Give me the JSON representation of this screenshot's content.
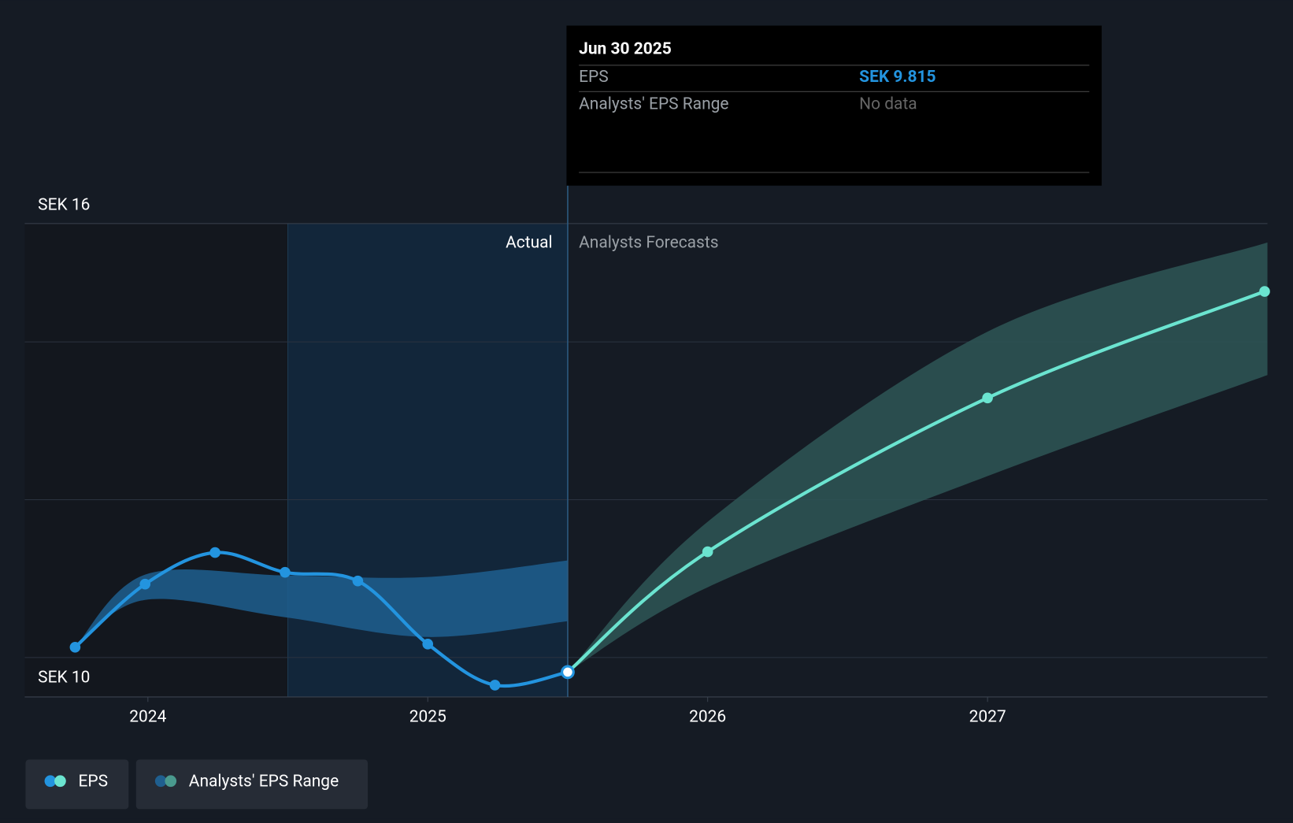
{
  "chart_data": {
    "type": "line",
    "y_axis_top_label": "SEK 16",
    "y_axis_bottom_label": "SEK 10",
    "region_labels": [
      "Actual",
      "Analysts Forecasts"
    ],
    "xlim": [
      2023.56,
      2028.0
    ],
    "xticks": [
      2024,
      2025,
      2026,
      2027
    ],
    "ylim": [
      9.5,
      15.5
    ],
    "yticks": [
      10,
      12,
      14
    ],
    "grid": true,
    "series": [
      {
        "name": "EPS",
        "color": "#2394df",
        "forecast_color": "#6be4d0",
        "x": [
          2023.74,
          2023.99,
          2024.24,
          2024.49,
          2024.75,
          2025.0,
          2025.24,
          2025.5
        ],
        "values": [
          10.13,
          10.93,
          11.33,
          11.08,
          10.97,
          10.17,
          9.65,
          9.815
        ],
        "forecast_x": [
          2025.5,
          2026.0,
          2027.0,
          2027.99
        ],
        "forecast_values": [
          9.815,
          11.34,
          13.29,
          14.64
        ]
      },
      {
        "name": "Analysts' EPS Range",
        "color": "#1f5f8f",
        "forecast_color": "#2e5656",
        "x": [
          2023.74,
          2023.99,
          2024.49,
          2025.0,
          2025.5
        ],
        "upper": [
          10.13,
          11.05,
          11.04,
          11.02,
          11.23
        ],
        "lower": [
          10.13,
          10.73,
          10.51,
          10.26,
          10.46
        ],
        "forecast_x": [
          2025.5,
          2026.0,
          2027.0,
          2028.0
        ],
        "forecast_upper": [
          9.815,
          11.72,
          14.13,
          15.26
        ],
        "forecast_lower": [
          9.815,
          10.89,
          12.3,
          13.58
        ]
      }
    ],
    "tooltip": {
      "title": "Jun 30 2025",
      "rows": [
        {
          "label": "EPS",
          "value": "SEK 9.815"
        },
        {
          "label": "Analysts' EPS Range",
          "value": "No data"
        }
      ]
    }
  }
}
